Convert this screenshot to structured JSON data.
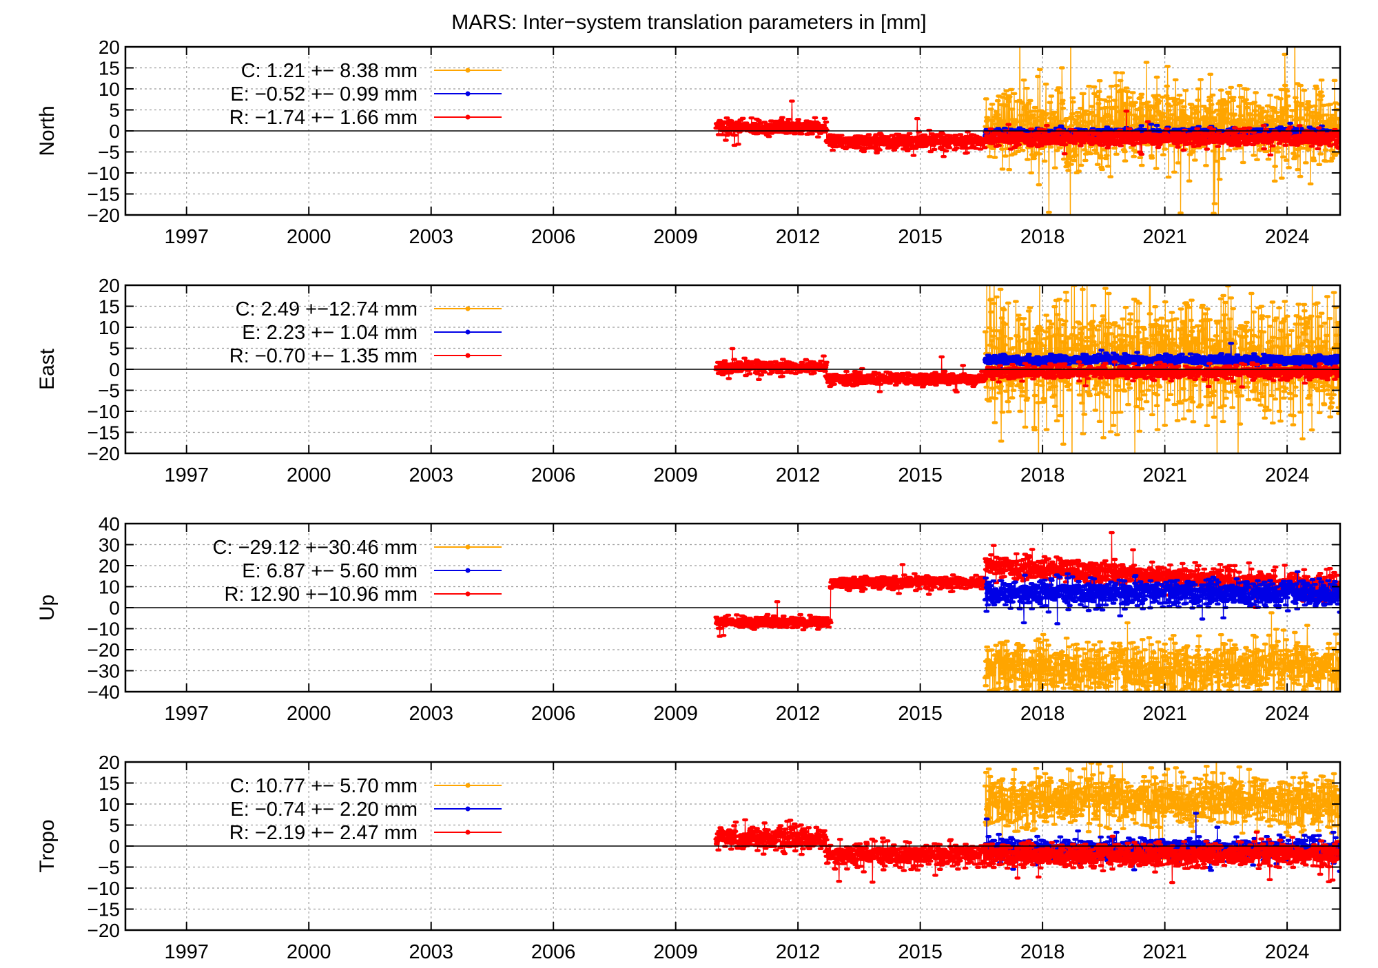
{
  "title": "MARS: Inter−system translation parameters in [mm]",
  "colors": {
    "C": "#ffa500",
    "E": "#0000e6",
    "R": "#ff0000"
  },
  "chart_data": [
    {
      "type": "line",
      "ylabel": "North",
      "ylim": [
        -20,
        20
      ],
      "yticks": [
        "20",
        "15",
        "10",
        "5",
        "0",
        "−5",
        "−10",
        "−15",
        "−20"
      ],
      "ytick_values": [
        20,
        15,
        10,
        5,
        0,
        -5,
        -10,
        -15,
        -20
      ],
      "xlim": [
        1995.5,
        2025.3
      ],
      "xticks": [
        "1997",
        "2000",
        "2003",
        "2006",
        "2009",
        "2012",
        "2015",
        "2018",
        "2021",
        "2024"
      ],
      "xtick_values": [
        1997,
        2000,
        2003,
        2006,
        2009,
        2012,
        2015,
        2018,
        2021,
        2024
      ],
      "grid": true,
      "legend_position": "top-left",
      "series": [
        {
          "key": "C",
          "name": "C:   1.21 +− 8.38 mm",
          "start": 2016.6,
          "end": 2025.3,
          "mean": 1.21,
          "std": 8.38
        },
        {
          "key": "E",
          "name": "E:  −0.52 +− 0.99 mm",
          "start": 2016.6,
          "end": 2025.3,
          "mean": -0.52,
          "std": 0.99
        },
        {
          "key": "R",
          "name": "R:  −1.74 +− 1.66 mm",
          "start": 2010.0,
          "end": 2025.3,
          "mean": -1.74,
          "std": 1.66
        }
      ]
    },
    {
      "type": "line",
      "ylabel": "East",
      "ylim": [
        -20,
        20
      ],
      "yticks": [
        "20",
        "15",
        "10",
        "5",
        "0",
        "−5",
        "−10",
        "−15",
        "−20"
      ],
      "ytick_values": [
        20,
        15,
        10,
        5,
        0,
        -5,
        -10,
        -15,
        -20
      ],
      "xlim": [
        1995.5,
        2025.3
      ],
      "xticks": [
        "1997",
        "2000",
        "2003",
        "2006",
        "2009",
        "2012",
        "2015",
        "2018",
        "2021",
        "2024"
      ],
      "xtick_values": [
        1997,
        2000,
        2003,
        2006,
        2009,
        2012,
        2015,
        2018,
        2021,
        2024
      ],
      "grid": true,
      "legend_position": "top-left",
      "series": [
        {
          "key": "C",
          "name": "C:   2.49 +−12.74 mm",
          "start": 2016.6,
          "end": 2025.3,
          "mean": 2.49,
          "std": 12.74
        },
        {
          "key": "E",
          "name": "E:   2.23 +− 1.04 mm",
          "start": 2016.6,
          "end": 2025.3,
          "mean": 2.23,
          "std": 1.04
        },
        {
          "key": "R",
          "name": "R:  −0.70 +− 1.35 mm",
          "start": 2010.0,
          "end": 2025.3,
          "mean": -0.7,
          "std": 1.35
        }
      ]
    },
    {
      "type": "line",
      "ylabel": "Up",
      "ylim": [
        -40,
        40
      ],
      "yticks": [
        "40",
        "30",
        "20",
        "10",
        "0",
        "−10",
        "−20",
        "−30",
        "−40"
      ],
      "ytick_values": [
        40,
        30,
        20,
        10,
        0,
        -10,
        -20,
        -30,
        -40
      ],
      "xlim": [
        1995.5,
        2025.3
      ],
      "xticks": [
        "1997",
        "2000",
        "2003",
        "2006",
        "2009",
        "2012",
        "2015",
        "2018",
        "2021",
        "2024"
      ],
      "xtick_values": [
        1997,
        2000,
        2003,
        2006,
        2009,
        2012,
        2015,
        2018,
        2021,
        2024
      ],
      "grid": true,
      "legend_position": "top-left",
      "series": [
        {
          "key": "C",
          "name": "C: −29.12 +−30.46 mm",
          "start": 2016.6,
          "end": 2025.3,
          "mean": -29.12,
          "std": 30.46
        },
        {
          "key": "E",
          "name": "E:   6.87 +− 5.60 mm",
          "start": 2016.6,
          "end": 2025.3,
          "mean": 6.87,
          "std": 5.6
        },
        {
          "key": "R",
          "name": "R:  12.90 +−10.96 mm",
          "start": 2010.0,
          "end": 2025.3,
          "mean": 12.9,
          "std": 10.96
        }
      ]
    },
    {
      "type": "line",
      "ylabel": "Tropo",
      "ylim": [
        -20,
        20
      ],
      "yticks": [
        "20",
        "15",
        "10",
        "5",
        "0",
        "−5",
        "−10",
        "−15",
        "−20"
      ],
      "ytick_values": [
        20,
        15,
        10,
        5,
        0,
        -5,
        -10,
        -15,
        -20
      ],
      "xlim": [
        1995.5,
        2025.3
      ],
      "xticks": [
        "1997",
        "2000",
        "2003",
        "2006",
        "2009",
        "2012",
        "2015",
        "2018",
        "2021",
        "2024"
      ],
      "xtick_values": [
        1997,
        2000,
        2003,
        2006,
        2009,
        2012,
        2015,
        2018,
        2021,
        2024
      ],
      "grid": true,
      "legend_position": "top-left",
      "series": [
        {
          "key": "C",
          "name": "C:  10.77 +− 5.70 mm",
          "start": 2016.6,
          "end": 2025.3,
          "mean": 10.77,
          "std": 5.7
        },
        {
          "key": "E",
          "name": "E:  −0.74 +− 2.20 mm",
          "start": 2016.6,
          "end": 2025.3,
          "mean": -0.74,
          "std": 2.2
        },
        {
          "key": "R",
          "name": "R:  −2.19 +− 2.47 mm",
          "start": 2010.0,
          "end": 2025.3,
          "mean": -2.19,
          "std": 2.47
        }
      ]
    }
  ]
}
